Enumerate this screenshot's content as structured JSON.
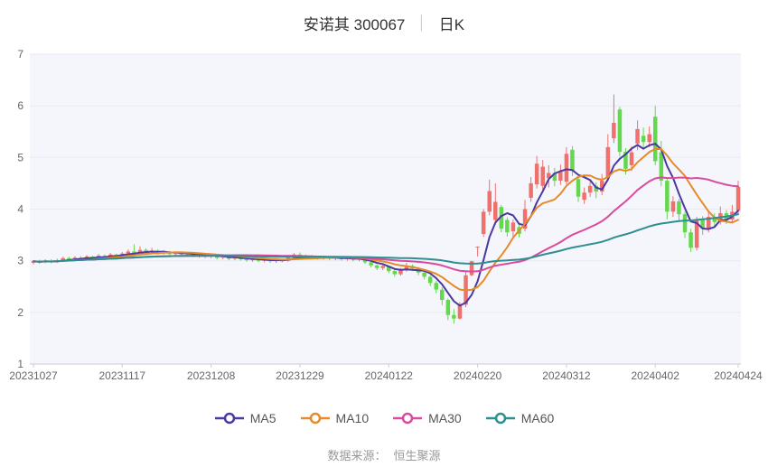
{
  "title": {
    "stock": "安诺其 300067",
    "separator": "│",
    "period": "日K"
  },
  "legend": [
    {
      "label": "MA5",
      "color": "#4b38a1"
    },
    {
      "label": "MA10",
      "color": "#e78a28"
    },
    {
      "label": "MA30",
      "color": "#da4a9f"
    },
    {
      "label": "MA60",
      "color": "#2e8f93"
    }
  ],
  "source": {
    "label": "数据来源：",
    "value": "恒生聚源"
  },
  "chart_data": {
    "type": "candlestick",
    "title": "安诺其 300067 日K",
    "ylim": [
      1,
      7
    ],
    "y_ticks": [
      1,
      2,
      3,
      4,
      5,
      6,
      7
    ],
    "x_tick_indices": [
      0,
      15,
      30,
      45,
      60,
      75,
      90,
      105,
      119
    ],
    "x_tick_labels": [
      "20231027",
      "20231117",
      "20231208",
      "20231229",
      "20240122",
      "20240220",
      "20240312",
      "20240402",
      "20240424"
    ],
    "grid": "horizontal-only",
    "legend_position": "bottom",
    "ma_windows": {
      "MA5": 5,
      "MA10": 10,
      "MA30": 30,
      "MA60": 60
    },
    "ma_derivation": "moving average of close, partial window at series start",
    "colors": {
      "up": "#f0706e",
      "down": "#63d84f",
      "plot_bg": "#f5f6fb",
      "grid_line": "#e6eaf3",
      "axis_line": "#c9ced9",
      "axis_text": "#666666",
      "ma5": "#4b38a1",
      "ma10": "#e78a28",
      "ma30": "#da4a9f",
      "ma60": "#2e8f93"
    },
    "candles_ohlc_format": "[open, close, low, high]",
    "dates": [
      "20231027",
      "20231030",
      "20231031",
      "20231101",
      "20231102",
      "20231103",
      "20231106",
      "20231107",
      "20231108",
      "20231109",
      "20231110",
      "20231113",
      "20231114",
      "20231115",
      "20231116",
      "20231117",
      "20231120",
      "20231121",
      "20231122",
      "20231123",
      "20231124",
      "20231127",
      "20231128",
      "20231129",
      "20231130",
      "20231201",
      "20231204",
      "20231205",
      "20231206",
      "20231207",
      "20231208",
      "20231211",
      "20231212",
      "20231213",
      "20231214",
      "20231215",
      "20231218",
      "20231219",
      "20231220",
      "20231221",
      "20231222",
      "20231225",
      "20231226",
      "20231227",
      "20231228",
      "20231229",
      "20240102",
      "20240103",
      "20240104",
      "20240105",
      "20240108",
      "20240109",
      "20240110",
      "20240111",
      "20240112",
      "20240115",
      "20240116",
      "20240117",
      "20240118",
      "20240119",
      "20240122",
      "20240123",
      "20240124",
      "20240125",
      "20240126",
      "20240129",
      "20240130",
      "20240131",
      "20240201",
      "20240202",
      "20240205",
      "20240206",
      "20240207",
      "20240208",
      "20240219",
      "20240220",
      "20240221",
      "20240222",
      "20240223",
      "20240226",
      "20240227",
      "20240228",
      "20240229",
      "20240301",
      "20240304",
      "20240305",
      "20240306",
      "20240307",
      "20240308",
      "20240311",
      "20240312",
      "20240313",
      "20240314",
      "20240315",
      "20240318",
      "20240319",
      "20240320",
      "20240321",
      "20240322",
      "20240325",
      "20240326",
      "20240327",
      "20240328",
      "20240329",
      "20240401",
      "20240402",
      "20240403",
      "20240408",
      "20240409",
      "20240410",
      "20240411",
      "20240412",
      "20240415",
      "20240416",
      "20240417",
      "20240418",
      "20240419",
      "20240422",
      "20240423",
      "20240424"
    ],
    "candles": [
      [
        2.96,
        2.99,
        2.93,
        3.01
      ],
      [
        2.99,
        2.97,
        2.94,
        3.02
      ],
      [
        2.97,
        3.0,
        2.95,
        3.03
      ],
      [
        3.0,
        2.98,
        2.95,
        3.03
      ],
      [
        2.98,
        3.01,
        2.96,
        3.04
      ],
      [
        3.01,
        3.05,
        2.99,
        3.08
      ],
      [
        3.05,
        3.02,
        3.0,
        3.08
      ],
      [
        3.02,
        3.06,
        3.0,
        3.09
      ],
      [
        3.06,
        3.04,
        3.01,
        3.09
      ],
      [
        3.04,
        3.08,
        3.02,
        3.11
      ],
      [
        3.08,
        3.05,
        3.03,
        3.1
      ],
      [
        3.05,
        3.1,
        3.03,
        3.13
      ],
      [
        3.1,
        3.08,
        3.05,
        3.12
      ],
      [
        3.08,
        3.12,
        3.06,
        3.15
      ],
      [
        3.12,
        3.1,
        3.07,
        3.14
      ],
      [
        3.1,
        3.14,
        3.08,
        3.17
      ],
      [
        3.14,
        3.18,
        3.11,
        3.22
      ],
      [
        3.18,
        3.15,
        3.1,
        3.32
      ],
      [
        3.15,
        3.21,
        3.12,
        3.28
      ],
      [
        3.21,
        3.16,
        3.13,
        3.24
      ],
      [
        3.16,
        3.19,
        3.13,
        3.25
      ],
      [
        3.19,
        3.15,
        3.12,
        3.22
      ],
      [
        3.15,
        3.17,
        3.12,
        3.2
      ],
      [
        3.17,
        3.13,
        3.1,
        3.19
      ],
      [
        3.13,
        3.16,
        3.1,
        3.18
      ],
      [
        3.16,
        3.12,
        3.09,
        3.18
      ],
      [
        3.12,
        3.14,
        3.08,
        3.17
      ],
      [
        3.14,
        3.1,
        3.07,
        3.16
      ],
      [
        3.1,
        3.12,
        3.06,
        3.15
      ],
      [
        3.12,
        3.08,
        3.05,
        3.14
      ],
      [
        3.08,
        3.1,
        3.05,
        3.13
      ],
      [
        3.1,
        3.06,
        3.03,
        3.12
      ],
      [
        3.06,
        3.08,
        3.03,
        3.11
      ],
      [
        3.08,
        3.04,
        3.01,
        3.1
      ],
      [
        3.04,
        3.07,
        3.01,
        3.09
      ],
      [
        3.07,
        3.03,
        3.0,
        3.09
      ],
      [
        3.03,
        3.01,
        2.98,
        3.06
      ],
      [
        3.01,
        3.04,
        2.98,
        3.07
      ],
      [
        3.04,
        3.0,
        2.97,
        3.06
      ],
      [
        3.0,
        3.02,
        2.97,
        3.05
      ],
      [
        3.02,
        2.99,
        2.96,
        3.04
      ],
      [
        2.99,
        3.02,
        2.96,
        3.05
      ],
      [
        3.02,
        3.0,
        2.97,
        3.04
      ],
      [
        3.0,
        3.06,
        2.98,
        3.09
      ],
      [
        3.06,
        3.12,
        3.04,
        3.15
      ],
      [
        3.12,
        3.09,
        3.06,
        3.16
      ],
      [
        3.09,
        3.06,
        3.03,
        3.12
      ],
      [
        3.06,
        3.08,
        3.03,
        3.11
      ],
      [
        3.08,
        3.05,
        3.02,
        3.1
      ],
      [
        3.05,
        3.07,
        3.02,
        3.1
      ],
      [
        3.07,
        3.04,
        3.01,
        3.09
      ],
      [
        3.04,
        3.06,
        3.01,
        3.09
      ],
      [
        3.06,
        3.03,
        3.0,
        3.08
      ],
      [
        3.03,
        3.05,
        3.0,
        3.08
      ],
      [
        3.05,
        3.02,
        2.99,
        3.07
      ],
      [
        3.02,
        3.04,
        2.99,
        3.07
      ],
      [
        3.04,
        2.97,
        2.94,
        3.05
      ],
      [
        2.97,
        2.91,
        2.87,
        2.99
      ],
      [
        2.91,
        2.86,
        2.82,
        2.93
      ],
      [
        2.86,
        2.9,
        2.82,
        2.93
      ],
      [
        2.9,
        2.8,
        2.76,
        2.91
      ],
      [
        2.8,
        2.74,
        2.69,
        2.83
      ],
      [
        2.74,
        2.82,
        2.71,
        2.86
      ],
      [
        2.82,
        2.9,
        2.79,
        2.96
      ],
      [
        2.9,
        2.85,
        2.8,
        2.93
      ],
      [
        2.85,
        2.77,
        2.72,
        2.88
      ],
      [
        2.77,
        2.69,
        2.64,
        2.81
      ],
      [
        2.69,
        2.57,
        2.51,
        2.72
      ],
      [
        2.57,
        2.44,
        2.37,
        2.61
      ],
      [
        2.44,
        2.24,
        2.14,
        2.49
      ],
      [
        2.24,
        1.95,
        1.85,
        2.27
      ],
      [
        1.95,
        1.88,
        1.78,
        2.06
      ],
      [
        1.88,
        2.15,
        1.86,
        2.2
      ],
      [
        2.15,
        2.72,
        2.1,
        2.79
      ],
      [
        2.72,
        2.99,
        2.7,
        3.0
      ],
      [
        3.27,
        3.27,
        3.08,
        3.28
      ],
      [
        3.52,
        3.95,
        3.46,
        4.0
      ],
      [
        3.95,
        4.35,
        3.88,
        4.57
      ],
      [
        3.79,
        4.14,
        3.7,
        4.5
      ],
      [
        4.04,
        3.62,
        3.55,
        4.08
      ],
      [
        3.79,
        3.55,
        3.47,
        3.84
      ],
      [
        3.57,
        3.74,
        3.44,
        3.8
      ],
      [
        3.65,
        3.52,
        3.45,
        3.72
      ],
      [
        3.62,
        4.0,
        3.57,
        4.18
      ],
      [
        4.22,
        4.5,
        4.14,
        4.62
      ],
      [
        4.48,
        4.88,
        4.4,
        5.03
      ],
      [
        4.45,
        4.82,
        4.38,
        4.95
      ],
      [
        4.6,
        4.7,
        4.42,
        4.85
      ],
      [
        4.7,
        4.55,
        4.44,
        4.8
      ],
      [
        4.55,
        4.72,
        4.47,
        4.86
      ],
      [
        4.53,
        5.07,
        4.48,
        5.2
      ],
      [
        5.15,
        4.74,
        4.64,
        5.22
      ],
      [
        4.58,
        4.24,
        4.14,
        4.62
      ],
      [
        4.18,
        4.32,
        4.1,
        4.42
      ],
      [
        4.32,
        4.45,
        4.24,
        4.55
      ],
      [
        4.45,
        4.34,
        4.21,
        4.52
      ],
      [
        4.34,
        4.55,
        4.27,
        4.68
      ],
      [
        4.62,
        5.2,
        4.55,
        5.45
      ],
      [
        5.37,
        5.67,
        5.28,
        6.22
      ],
      [
        5.93,
        5.11,
        5.02,
        5.98
      ],
      [
        5.11,
        4.78,
        4.67,
        5.18
      ],
      [
        4.85,
        5.1,
        4.74,
        5.21
      ],
      [
        5.27,
        5.55,
        5.14,
        5.72
      ],
      [
        5.42,
        5.3,
        5.17,
        5.58
      ],
      [
        5.3,
        5.45,
        5.2,
        5.6
      ],
      [
        5.79,
        4.93,
        4.85,
        6.0
      ],
      [
        5.1,
        4.55,
        4.44,
        5.32
      ],
      [
        4.55,
        3.95,
        3.8,
        4.6
      ],
      [
        3.95,
        4.15,
        3.85,
        4.25
      ],
      [
        4.15,
        3.9,
        3.77,
        4.2
      ],
      [
        3.9,
        3.55,
        3.44,
        3.95
      ],
      [
        3.55,
        3.25,
        3.17,
        3.62
      ],
      [
        3.25,
        3.8,
        3.2,
        3.85
      ],
      [
        3.8,
        3.62,
        3.5,
        3.86
      ],
      [
        3.62,
        3.85,
        3.55,
        3.95
      ],
      [
        3.85,
        3.75,
        3.67,
        3.92
      ],
      [
        3.75,
        3.92,
        3.7,
        4.05
      ],
      [
        3.92,
        3.8,
        3.71,
        3.98
      ],
      [
        3.8,
        3.95,
        3.74,
        4.08
      ],
      [
        3.97,
        4.43,
        3.92,
        4.55
      ]
    ]
  }
}
